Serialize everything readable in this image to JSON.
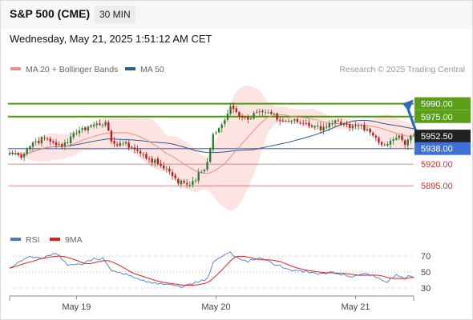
{
  "header": {
    "title": "S&P 500 (CME)",
    "timeframe": "30 MIN"
  },
  "datetime": "Wednesday, May 21, 2025 1:51:12 AM CET",
  "legend": {
    "items": [
      {
        "label": "MA 20 + Bollinger Bands",
        "color": "#f28b82"
      },
      {
        "label": "MA 50",
        "color": "#2e5c8a"
      }
    ],
    "credit": "Research © 2025 Trading Central"
  },
  "colors": {
    "up": "#2e7d32",
    "down": "#b71c1c",
    "bollinger_fill": "#fde0df",
    "ma20": "#f28b82",
    "ma50": "#2e5c8a",
    "resistance": "#4a9a0a",
    "pivot": "#4a78d0",
    "support": "#e57373",
    "arrow": "#2a6cb8",
    "rsi": "#4a78d0",
    "rsi_ma": "#e02020"
  },
  "levels": [
    {
      "value": 5990,
      "label": "5990.00",
      "kind": "resistance"
    },
    {
      "value": 5975,
      "label": "5975.00",
      "kind": "resistance"
    },
    {
      "value": 5952.5,
      "label": "5952.50",
      "kind": "last"
    },
    {
      "value": 5938,
      "label": "5938.00",
      "kind": "pivot"
    },
    {
      "value": 5920,
      "label": "5920.00",
      "kind": "support"
    },
    {
      "value": 5895,
      "label": "5895.00",
      "kind": "support"
    }
  ],
  "rsi_panel": {
    "legend": [
      {
        "label": "RSI",
        "color": "#4a78d0"
      },
      {
        "label": "9MA",
        "color": "#e02020"
      }
    ],
    "ticks": [
      "70",
      "50",
      "30"
    ]
  },
  "x_axis": {
    "labels": [
      "May 19",
      "May 20",
      "May 21"
    ]
  },
  "chart_data": {
    "type": "candlestick",
    "price_range": [
      5860,
      6022
    ],
    "rsi_range": [
      22,
      80
    ],
    "x_labels": [
      "May 19",
      "May 20",
      "May 21"
    ],
    "price_anchors": [
      [
        0,
        5933
      ],
      [
        4,
        5930
      ],
      [
        8,
        5945
      ],
      [
        12,
        5950
      ],
      [
        15,
        5945
      ],
      [
        18,
        5940
      ],
      [
        22,
        5956
      ],
      [
        26,
        5962
      ],
      [
        30,
        5967
      ],
      [
        33,
        5969
      ],
      [
        35,
        5943
      ],
      [
        38,
        5945
      ],
      [
        42,
        5940
      ],
      [
        46,
        5930
      ],
      [
        50,
        5922
      ],
      [
        54,
        5915
      ],
      [
        58,
        5900
      ],
      [
        62,
        5897
      ],
      [
        66,
        5911
      ],
      [
        68,
        5920
      ],
      [
        70,
        5955
      ],
      [
        73,
        5965
      ],
      [
        76,
        5985
      ],
      [
        79,
        5978
      ],
      [
        82,
        5972
      ],
      [
        85,
        5983
      ],
      [
        88,
        5979
      ],
      [
        90,
        5978
      ],
      [
        93,
        5970
      ],
      [
        97,
        5970
      ],
      [
        102,
        5967
      ],
      [
        107,
        5962
      ],
      [
        112,
        5968
      ],
      [
        117,
        5962
      ],
      [
        121,
        5965
      ],
      [
        124,
        5958
      ],
      [
        128,
        5943
      ],
      [
        130,
        5942
      ],
      [
        133,
        5952
      ],
      [
        136,
        5946
      ],
      [
        138,
        5953
      ]
    ],
    "rsi_anchors": [
      [
        0,
        55
      ],
      [
        6,
        68
      ],
      [
        12,
        68
      ],
      [
        16,
        73
      ],
      [
        20,
        58
      ],
      [
        24,
        60
      ],
      [
        28,
        64
      ],
      [
        32,
        68
      ],
      [
        35,
        52
      ],
      [
        40,
        48
      ],
      [
        44,
        42
      ],
      [
        48,
        38
      ],
      [
        52,
        36
      ],
      [
        56,
        34
      ],
      [
        60,
        32
      ],
      [
        64,
        38
      ],
      [
        68,
        42
      ],
      [
        70,
        62
      ],
      [
        73,
        70
      ],
      [
        76,
        75
      ],
      [
        79,
        66
      ],
      [
        82,
        62
      ],
      [
        86,
        68
      ],
      [
        90,
        62
      ],
      [
        94,
        55
      ],
      [
        98,
        52
      ],
      [
        102,
        52
      ],
      [
        106,
        47
      ],
      [
        110,
        50
      ],
      [
        114,
        46
      ],
      [
        118,
        44
      ],
      [
        122,
        48
      ],
      [
        126,
        43
      ],
      [
        130,
        37
      ],
      [
        133,
        46
      ],
      [
        136,
        41
      ],
      [
        138,
        45
      ]
    ]
  }
}
